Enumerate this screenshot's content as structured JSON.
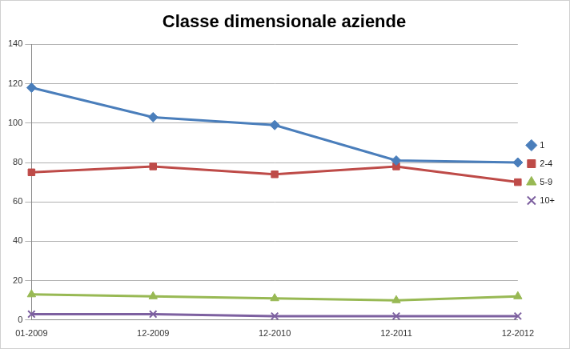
{
  "chart_data": {
    "type": "line",
    "title": "Classe dimensionale aziende",
    "categories": [
      "01-2009",
      "12-2009",
      "12-2010",
      "12-2011",
      "12-2012"
    ],
    "series": [
      {
        "name": "1",
        "color": "#4a7ebb",
        "marker": "diamond",
        "values": [
          118,
          103,
          99,
          81,
          80
        ]
      },
      {
        "name": "2-4",
        "color": "#be4b48",
        "marker": "square",
        "values": [
          75,
          78,
          74,
          78,
          70
        ]
      },
      {
        "name": "5-9",
        "color": "#98b954",
        "marker": "triangle",
        "values": [
          13,
          12,
          11,
          10,
          12
        ]
      },
      {
        "name": "10+",
        "color": "#7d60a0",
        "marker": "x",
        "values": [
          3,
          3,
          2,
          2,
          2
        ]
      }
    ],
    "ylim": [
      0,
      140
    ],
    "yticks": [
      0,
      20,
      40,
      60,
      80,
      100,
      120,
      140
    ],
    "grid": true,
    "legend": "right"
  }
}
